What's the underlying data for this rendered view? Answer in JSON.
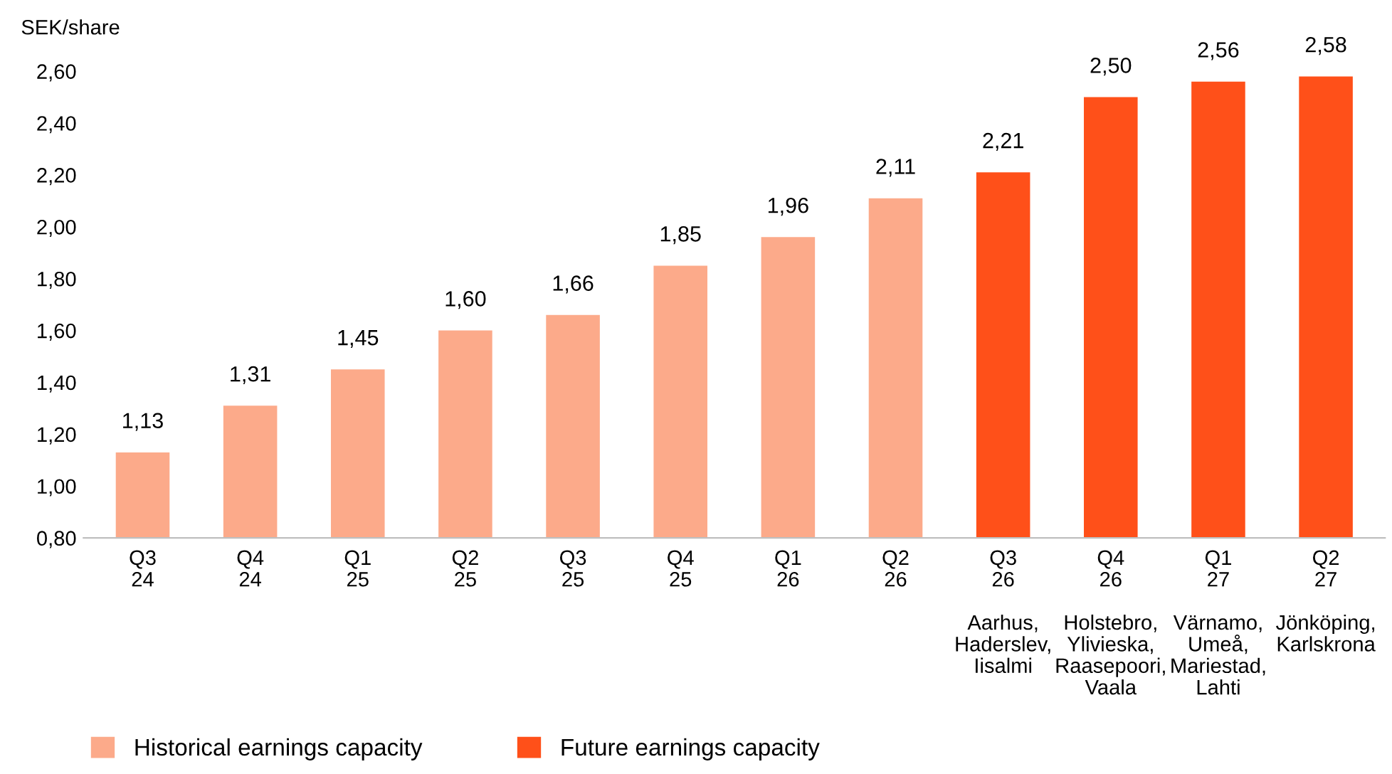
{
  "chart_data": {
    "type": "bar",
    "ylabel": "SEK/share",
    "categories": [
      "Q3\n24",
      "Q4\n24",
      "Q1\n25",
      "Q2\n25",
      "Q3\n25",
      "Q4\n25",
      "Q1\n26",
      "Q2\n26",
      "Q3\n26\n\nAarhus,\nHaderslev,\nIisalmi",
      "Q4\n26\n\nHolstebro,\nYlivieska,\nRaasepoori,\nVaala",
      "Q1\n27\n\nVärnamo,\nUmeå,\nMariestad,\nLahti",
      "Q2\n27\n\nJönköping,\nKarlskrona"
    ],
    "series": [
      {
        "name": "Historical earnings capacity",
        "color": "#fcaa8a",
        "values": [
          1.13,
          1.31,
          1.45,
          1.6,
          1.66,
          1.85,
          1.96,
          2.11,
          null,
          null,
          null,
          null
        ],
        "value_labels": [
          "1,13",
          "1,31",
          "1,45",
          "1,60",
          "1,66",
          "1,85",
          "1,96",
          "2,11",
          null,
          null,
          null,
          null
        ]
      },
      {
        "name": "Future earnings capacity",
        "color": "#ff5019",
        "values": [
          null,
          null,
          null,
          null,
          null,
          null,
          null,
          null,
          2.21,
          2.5,
          2.56,
          2.58
        ],
        "value_labels": [
          null,
          null,
          null,
          null,
          null,
          null,
          null,
          null,
          "2,21",
          "2,50",
          "2,56",
          "2,58"
        ]
      }
    ],
    "ylim": [
      0.8,
      2.6
    ],
    "yticks": [
      {
        "value": 0.8,
        "label": "0,80"
      },
      {
        "value": 1.0,
        "label": "1,00"
      },
      {
        "value": 1.2,
        "label": "1,20"
      },
      {
        "value": 1.4,
        "label": "1,40"
      },
      {
        "value": 1.6,
        "label": "1,60"
      },
      {
        "value": 1.8,
        "label": "1,80"
      },
      {
        "value": 2.0,
        "label": "2,00"
      },
      {
        "value": 2.2,
        "label": "2,20"
      },
      {
        "value": 2.4,
        "label": "2,40"
      },
      {
        "value": 2.6,
        "label": "2,60"
      }
    ],
    "grid": false,
    "legend": "bottom left"
  }
}
